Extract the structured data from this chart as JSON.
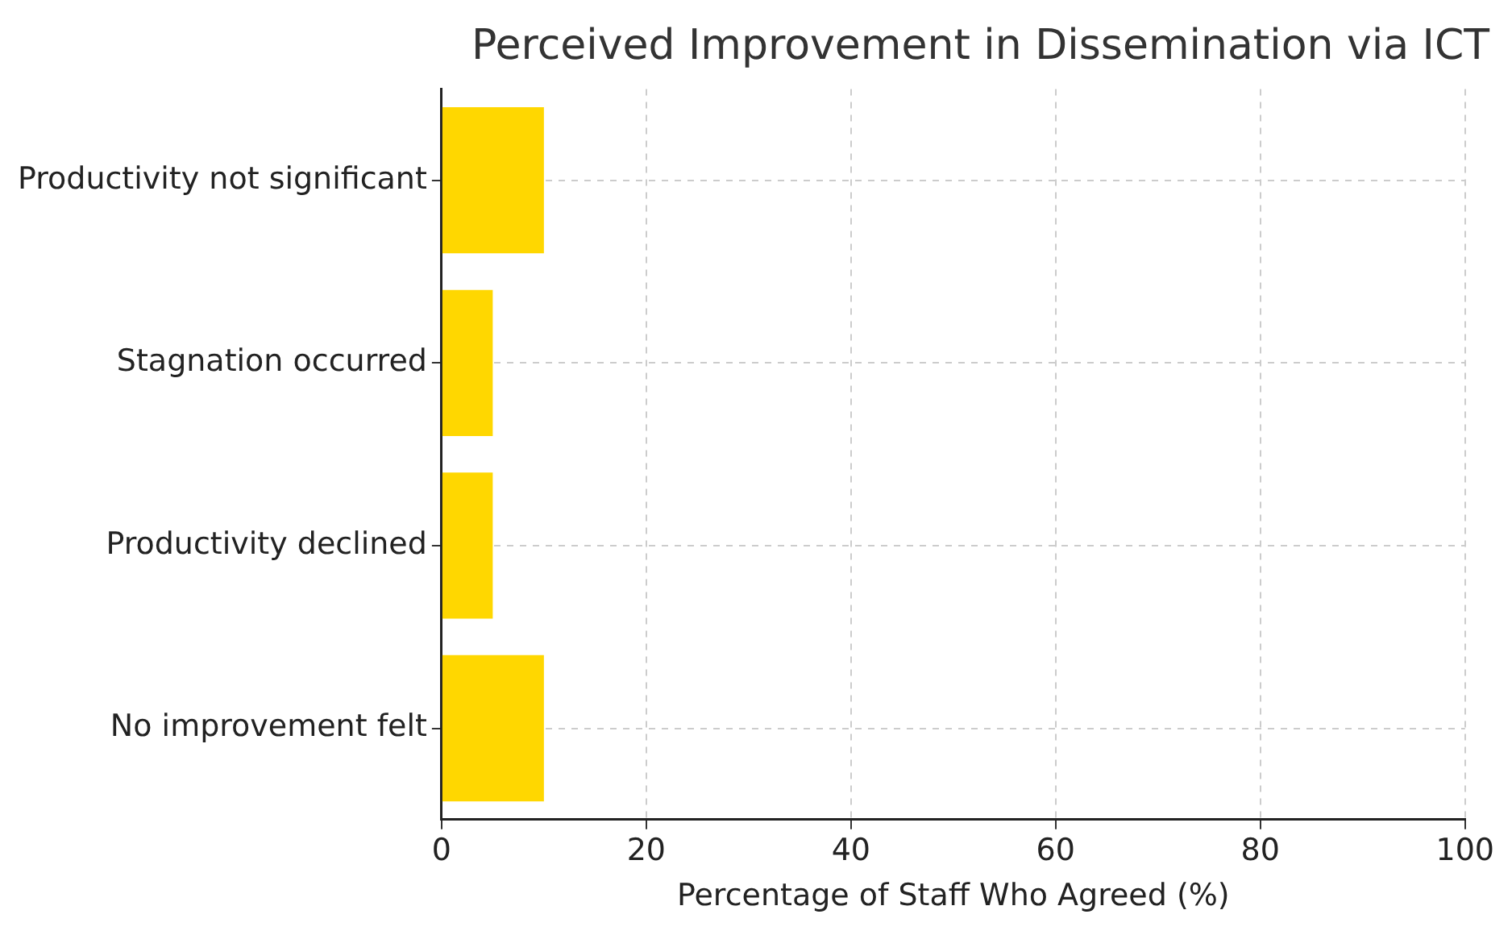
{
  "chart_data": {
    "type": "bar",
    "orientation": "horizontal",
    "title": "Perceived Improvement in Dissemination via ICT",
    "xlabel": "Percentage of Staff Who Agreed (%)",
    "categories": [
      "Productivity not significant",
      "Stagnation occurred",
      "Productivity declined",
      "No improvement felt"
    ],
    "values": [
      10,
      5,
      5,
      10
    ],
    "color": "#ffd700",
    "xlim": [
      0,
      100
    ],
    "xticks": [
      0,
      20,
      40,
      60,
      80,
      100
    ],
    "grid": true
  }
}
